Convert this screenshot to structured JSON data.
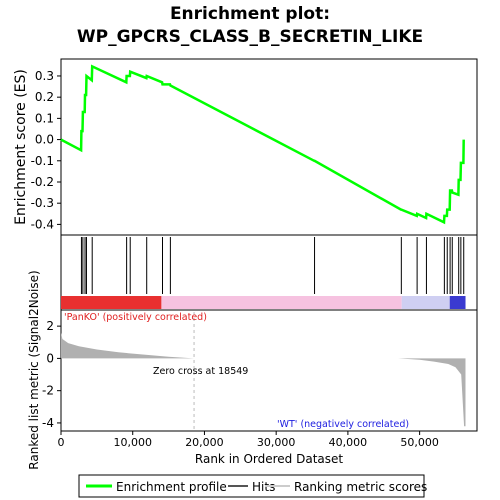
{
  "chart_data": {
    "type": "line",
    "title": "Enrichment plot:",
    "subtitle": "WP_GPCRS_CLASS_B_SECRETIN_LIKE",
    "xlabel": "Rank in Ordered Dataset",
    "xlim": [
      0,
      58000
    ],
    "x_ticks": [
      0,
      10000,
      20000,
      30000,
      40000,
      50000
    ],
    "x_tick_labels": [
      "0",
      "10,000",
      "20,000",
      "30,000",
      "40,000",
      "50,000"
    ],
    "es_panel": {
      "ylabel": "Enrichment score (ES)",
      "ylim": [
        -0.45,
        0.38
      ],
      "y_ticks": [
        0.3,
        0.2,
        0.1,
        0.0,
        -0.1,
        -0.2,
        -0.3,
        -0.4
      ],
      "y_tick_labels": [
        "0.3",
        "0.2",
        "0.1",
        "0.0",
        "-0.1",
        "-0.2",
        "-0.3",
        "-0.4"
      ],
      "series": [
        {
          "name": "Enrichment profile",
          "color": "#00ff00",
          "x": [
            0,
            2800,
            2850,
            3000,
            3050,
            3300,
            3350,
            3500,
            3550,
            4300,
            4350,
            9100,
            9150,
            9600,
            9650,
            11900,
            11950,
            14100,
            14150,
            15200,
            15250,
            35300,
            35350,
            47400,
            47450,
            49600,
            49650,
            50900,
            50950,
            53400,
            53450,
            53800,
            53850,
            54200,
            54250,
            54500,
            54550,
            55400,
            55450,
            55700,
            55750,
            56100,
            56150
          ],
          "values": [
            0.0,
            -0.05,
            0.04,
            0.04,
            0.13,
            0.13,
            0.21,
            0.21,
            0.3,
            0.28,
            0.345,
            0.27,
            0.3,
            0.3,
            0.32,
            0.29,
            0.3,
            0.27,
            0.26,
            0.26,
            0.255,
            -0.1,
            -0.1,
            -0.33,
            -0.33,
            -0.36,
            -0.35,
            -0.37,
            -0.35,
            -0.39,
            -0.36,
            -0.36,
            -0.33,
            -0.33,
            -0.24,
            -0.24,
            -0.25,
            -0.26,
            -0.19,
            -0.19,
            -0.11,
            -0.11,
            0.0
          ]
        }
      ]
    },
    "hits_panel": {
      "name": "Hits",
      "x": [
        2850,
        3050,
        3350,
        3550,
        4350,
        9150,
        9650,
        11950,
        14150,
        15250,
        35350,
        47450,
        49650,
        50950,
        53450,
        53850,
        54250,
        54550,
        55450,
        55750,
        56150
      ]
    },
    "metric_panel": {
      "name": "Ranking metric scores",
      "ylabel": "Ranked list metric (Signal2Noise)",
      "ylim": [
        -4.5,
        3.0
      ],
      "y_ticks": [
        2,
        0,
        -2,
        -4
      ],
      "y_tick_labels": [
        "2",
        "0",
        "-2",
        "-4"
      ],
      "x": [
        0,
        200,
        1000,
        2500,
        5000,
        8000,
        12000,
        15000,
        18549,
        30000,
        47000,
        50000,
        52000,
        54000,
        55000,
        55800,
        56200,
        56400
      ],
      "values": [
        1.6,
        1.2,
        0.95,
        0.75,
        0.55,
        0.38,
        0.22,
        0.1,
        0.0,
        0.0,
        0.0,
        -0.08,
        -0.2,
        -0.35,
        -0.55,
        -1.0,
        -4.2,
        -4.2
      ],
      "fill_color": "#b0b0b0",
      "zero_cross_label": "Zero cross at 18549",
      "zero_cross_x": 18549,
      "positive_label": "'PanKO' (positively correlated)",
      "negative_label": "'WT' (negatively correlated)"
    },
    "gradient_bar": {
      "segments": [
        {
          "from": 0,
          "to": 14000,
          "color": "#e83030"
        },
        {
          "from": 14000,
          "to": 47500,
          "color": "#f6c2e0"
        },
        {
          "from": 47500,
          "to": 54200,
          "color": "#cfcff2"
        },
        {
          "from": 54200,
          "to": 56400,
          "color": "#3a3ad0"
        }
      ]
    },
    "legend": {
      "placement": "bottom",
      "items": [
        {
          "label": "Enrichment profile",
          "color": "#00ff00",
          "style": "line"
        },
        {
          "label": "Hits",
          "color": "#555555",
          "style": "line"
        },
        {
          "label": "Ranking metric scores",
          "color": "#cccccc",
          "style": "line"
        }
      ]
    }
  }
}
